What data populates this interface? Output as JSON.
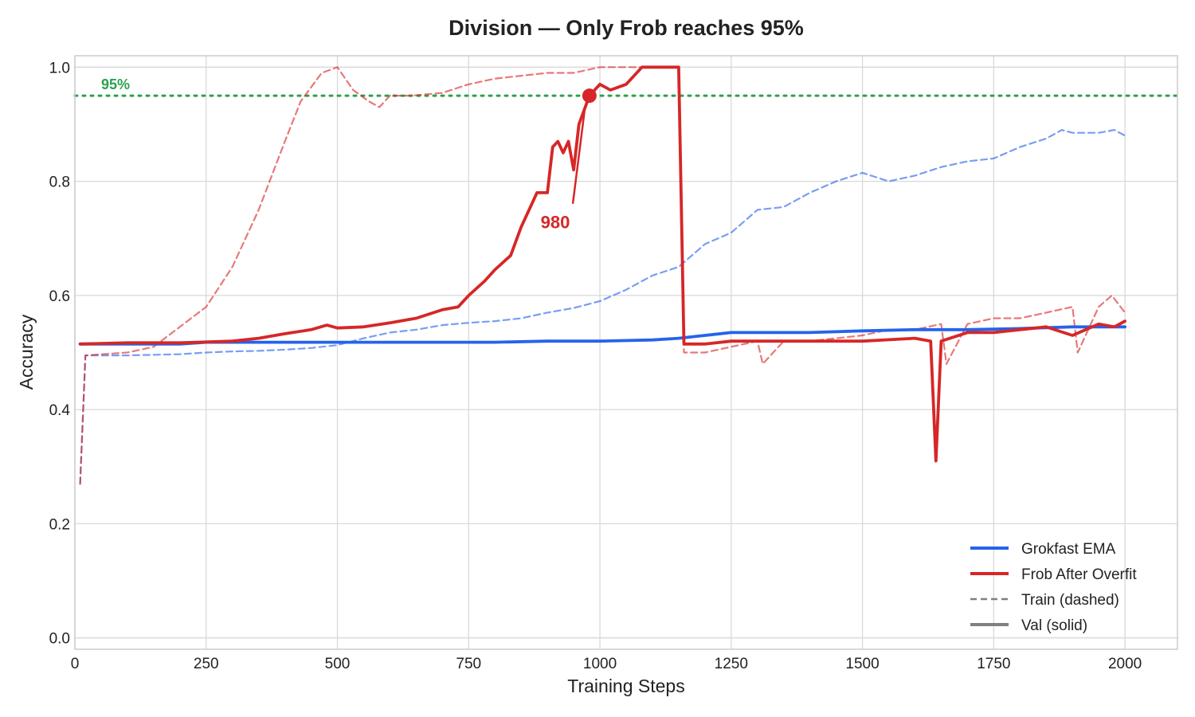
{
  "chart_data": {
    "type": "line",
    "title": "Division — Only Frob reaches 95%",
    "xlabel": "Training Steps",
    "ylabel": "Accuracy",
    "xlim": [
      0,
      2100
    ],
    "ylim": [
      -0.02,
      1.02
    ],
    "xticks": [
      0,
      250,
      500,
      750,
      1000,
      1250,
      1500,
      1750,
      2000
    ],
    "yticks": [
      0.0,
      0.2,
      0.4,
      0.6,
      0.8,
      1.0
    ],
    "xtick_labels": [
      "0",
      "250",
      "500",
      "750",
      "1000",
      "1250",
      "1500",
      "1750",
      "2000"
    ],
    "ytick_labels": [
      "0.0",
      "0.2",
      "0.4",
      "0.6",
      "0.8",
      "1.0"
    ],
    "grid": true,
    "legend_position": "bottom-right",
    "reference_line": {
      "y": 0.95,
      "label": "95%",
      "color": "#2ca050"
    },
    "annotation": {
      "text": "980",
      "x": 980,
      "y": 0.95,
      "text_x": 915,
      "text_y": 0.73,
      "color": "#d62728"
    },
    "legend": [
      {
        "label": "Grokfast EMA",
        "color": "#2563eb",
        "style": "solid"
      },
      {
        "label": "Frob After Overfit",
        "color": "#d62728",
        "style": "solid"
      },
      {
        "label": "Train (dashed)",
        "color": "#808080",
        "style": "dashed"
      },
      {
        "label": "Val (solid)",
        "color": "#808080",
        "style": "solid"
      }
    ],
    "series": [
      {
        "method": "Grokfast EMA",
        "split": "train",
        "color": "#2563eb",
        "style": "dashed",
        "x": [
          10,
          20,
          100,
          200,
          250,
          300,
          350,
          400,
          450,
          500,
          550,
          600,
          650,
          700,
          750,
          800,
          850,
          900,
          950,
          1000,
          1050,
          1100,
          1150,
          1200,
          1250,
          1300,
          1350,
          1400,
          1450,
          1500,
          1550,
          1600,
          1650,
          1700,
          1750,
          1800,
          1850,
          1880,
          1900,
          1950,
          1980,
          2000
        ],
        "y": [
          0.27,
          0.495,
          0.495,
          0.497,
          0.5,
          0.502,
          0.503,
          0.505,
          0.508,
          0.513,
          0.525,
          0.535,
          0.54,
          0.548,
          0.552,
          0.555,
          0.56,
          0.57,
          0.578,
          0.59,
          0.61,
          0.635,
          0.65,
          0.69,
          0.71,
          0.75,
          0.755,
          0.78,
          0.8,
          0.815,
          0.8,
          0.81,
          0.825,
          0.835,
          0.84,
          0.86,
          0.875,
          0.89,
          0.885,
          0.885,
          0.89,
          0.88
        ]
      },
      {
        "method": "Grokfast EMA",
        "split": "val",
        "color": "#2563eb",
        "style": "solid",
        "x": [
          10,
          100,
          200,
          250,
          300,
          400,
          500,
          600,
          700,
          800,
          900,
          1000,
          1100,
          1150,
          1200,
          1250,
          1300,
          1400,
          1500,
          1600,
          1700,
          1800,
          1900,
          2000
        ],
        "y": [
          0.515,
          0.515,
          0.515,
          0.518,
          0.518,
          0.518,
          0.518,
          0.518,
          0.518,
          0.518,
          0.52,
          0.52,
          0.522,
          0.525,
          0.53,
          0.535,
          0.535,
          0.535,
          0.538,
          0.54,
          0.54,
          0.542,
          0.545,
          0.545
        ]
      },
      {
        "method": "Frob After Overfit",
        "split": "train",
        "color": "#d62728",
        "style": "dashed",
        "x": [
          10,
          20,
          100,
          150,
          200,
          250,
          300,
          350,
          400,
          430,
          470,
          500,
          530,
          560,
          580,
          600,
          640,
          700,
          750,
          800,
          850,
          900,
          950,
          1000,
          1050,
          1100,
          1150,
          1160,
          1200,
          1250,
          1300,
          1310,
          1350,
          1400,
          1500,
          1550,
          1600,
          1650,
          1660,
          1700,
          1750,
          1800,
          1850,
          1900,
          1910,
          1950,
          1975,
          2000
        ],
        "y": [
          0.27,
          0.495,
          0.5,
          0.51,
          0.545,
          0.58,
          0.65,
          0.75,
          0.87,
          0.94,
          0.99,
          1.0,
          0.96,
          0.94,
          0.93,
          0.95,
          0.95,
          0.955,
          0.97,
          0.98,
          0.985,
          0.99,
          0.99,
          1.0,
          1.0,
          1.0,
          1.0,
          0.5,
          0.5,
          0.51,
          0.52,
          0.48,
          0.52,
          0.52,
          0.53,
          0.54,
          0.54,
          0.55,
          0.48,
          0.55,
          0.56,
          0.56,
          0.57,
          0.58,
          0.5,
          0.58,
          0.6,
          0.57
        ]
      },
      {
        "method": "Frob After Overfit",
        "split": "val",
        "color": "#d62728",
        "style": "solid",
        "x": [
          10,
          100,
          200,
          300,
          350,
          400,
          450,
          480,
          500,
          550,
          600,
          650,
          700,
          730,
          750,
          780,
          800,
          830,
          850,
          870,
          880,
          900,
          910,
          920,
          930,
          940,
          950,
          960,
          980,
          1000,
          1020,
          1050,
          1070,
          1080,
          1100,
          1130,
          1150,
          1160,
          1200,
          1250,
          1300,
          1400,
          1500,
          1600,
          1630,
          1640,
          1650,
          1700,
          1750,
          1800,
          1850,
          1900,
          1950,
          1980,
          2000
        ],
        "y": [
          0.515,
          0.517,
          0.517,
          0.52,
          0.525,
          0.533,
          0.54,
          0.548,
          0.543,
          0.545,
          0.552,
          0.56,
          0.575,
          0.58,
          0.6,
          0.625,
          0.645,
          0.67,
          0.72,
          0.76,
          0.78,
          0.78,
          0.86,
          0.87,
          0.85,
          0.87,
          0.82,
          0.9,
          0.95,
          0.97,
          0.96,
          0.97,
          0.99,
          1.0,
          1.0,
          1.0,
          1.0,
          0.515,
          0.515,
          0.52,
          0.52,
          0.52,
          0.52,
          0.525,
          0.52,
          0.31,
          0.52,
          0.535,
          0.535,
          0.54,
          0.545,
          0.53,
          0.55,
          0.545,
          0.555
        ]
      }
    ]
  }
}
